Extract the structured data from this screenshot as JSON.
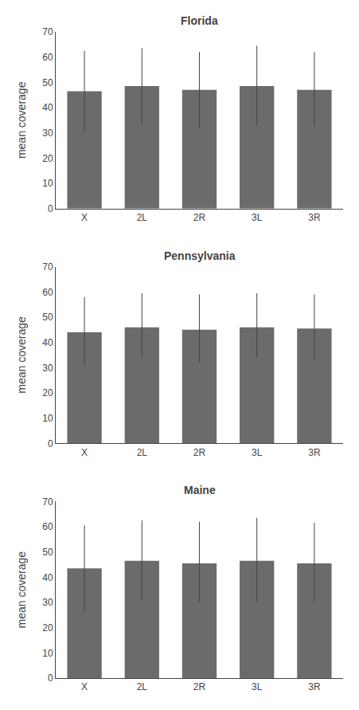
{
  "chart_data": [
    {
      "type": "bar",
      "title": "Florida",
      "ylabel": "mean coverage",
      "categories": [
        "X",
        "2L",
        "2R",
        "3L",
        "3R"
      ],
      "values": [
        46.5,
        48.5,
        47.0,
        48.5,
        47.0
      ],
      "error_upper": [
        16.0,
        15.0,
        15.0,
        16.0,
        15.0
      ],
      "error_lower": [
        16.0,
        15.0,
        15.0,
        15.5,
        14.5
      ],
      "color": "#6b6b6b",
      "ylim": [
        0,
        70
      ],
      "yticks": [
        0,
        10,
        20,
        30,
        40,
        50,
        60,
        70
      ],
      "grid": false
    },
    {
      "type": "bar",
      "title": "Pennsylvania",
      "ylabel": "mean coverage",
      "categories": [
        "X",
        "2L",
        "2R",
        "3L",
        "3R"
      ],
      "values": [
        44.0,
        46.0,
        45.0,
        46.0,
        45.5
      ],
      "error_upper": [
        14.0,
        13.5,
        14.0,
        13.5,
        13.5
      ],
      "error_lower": [
        13.0,
        12.0,
        13.0,
        12.0,
        12.5
      ],
      "color": "#6b6b6b",
      "ylim": [
        0,
        70
      ],
      "yticks": [
        0,
        10,
        20,
        30,
        40,
        50,
        60,
        70
      ],
      "grid": false
    },
    {
      "type": "bar",
      "title": "Maine",
      "ylabel": "mean coverage",
      "categories": [
        "X",
        "2L",
        "2R",
        "3L",
        "3R"
      ],
      "values": [
        43.5,
        46.5,
        45.5,
        46.5,
        45.5
      ],
      "error_upper": [
        17.0,
        16.0,
        16.5,
        17.0,
        16.0
      ],
      "error_lower": [
        17.0,
        16.0,
        15.5,
        16.5,
        15.5
      ],
      "color": "#6b6b6b",
      "ylim": [
        0,
        70
      ],
      "yticks": [
        0,
        10,
        20,
        30,
        40,
        50,
        60,
        70
      ],
      "grid": false
    }
  ]
}
